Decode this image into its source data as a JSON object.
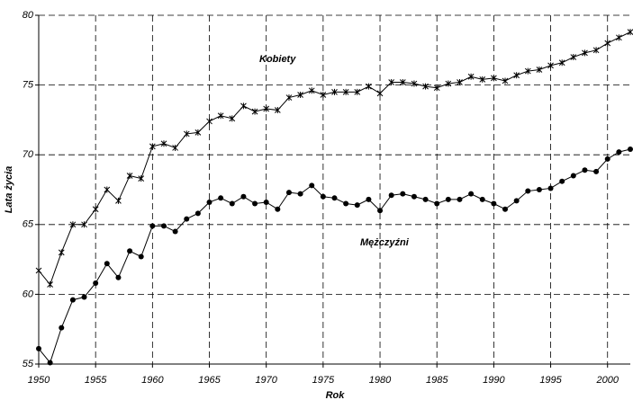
{
  "chart_data": {
    "type": "line",
    "x_label": "Rok",
    "y_label": "Lata życia",
    "annotations": [
      "Kobiety",
      "Mężczyźni"
    ],
    "x": [
      1950,
      1951,
      1952,
      1953,
      1954,
      1955,
      1956,
      1957,
      1958,
      1959,
      1960,
      1961,
      1962,
      1963,
      1964,
      1965,
      1966,
      1967,
      1968,
      1969,
      1970,
      1971,
      1972,
      1973,
      1974,
      1975,
      1976,
      1977,
      1978,
      1979,
      1980,
      1981,
      1982,
      1983,
      1984,
      1985,
      1986,
      1987,
      1988,
      1989,
      1990,
      1991,
      1992,
      1993,
      1994,
      1995,
      1996,
      1997,
      1998,
      1999,
      2000,
      2001,
      2002
    ],
    "series": [
      {
        "name": "Kobiety",
        "color": "#000000",
        "marker": "x",
        "values": [
          61.7,
          60.7,
          63.0,
          65.0,
          65.0,
          66.1,
          67.5,
          66.7,
          68.5,
          68.3,
          70.6,
          70.8,
          70.5,
          71.5,
          71.6,
          72.4,
          72.8,
          72.6,
          73.5,
          73.1,
          73.3,
          73.2,
          74.1,
          74.3,
          74.6,
          74.3,
          74.5,
          74.5,
          74.5,
          74.9,
          74.4,
          75.2,
          75.2,
          75.1,
          74.9,
          74.8,
          75.1,
          75.2,
          75.6,
          75.4,
          75.5,
          75.3,
          75.7,
          76.0,
          76.1,
          76.4,
          76.6,
          77.0,
          77.3,
          77.5,
          78.0,
          78.4,
          78.8
        ]
      },
      {
        "name": "Mężczyźni",
        "color": "#000000",
        "marker": "o",
        "values": [
          56.1,
          55.1,
          57.6,
          59.6,
          59.8,
          60.8,
          62.2,
          61.2,
          63.1,
          62.7,
          64.9,
          64.9,
          64.5,
          65.4,
          65.8,
          66.6,
          66.9,
          66.5,
          67.0,
          66.5,
          66.6,
          66.1,
          67.3,
          67.2,
          67.8,
          67.0,
          66.9,
          66.5,
          66.4,
          66.8,
          66.0,
          67.1,
          67.2,
          67.0,
          66.8,
          66.5,
          66.8,
          66.8,
          67.2,
          66.8,
          66.5,
          66.1,
          66.7,
          67.4,
          67.5,
          67.6,
          68.1,
          68.5,
          68.9,
          68.8,
          69.7,
          70.2,
          70.4
        ]
      }
    ],
    "xlim": [
      1950,
      2002
    ],
    "xticks": [
      1950,
      1955,
      1960,
      1965,
      1970,
      1975,
      1980,
      1985,
      1990,
      1995,
      2000
    ],
    "ylim": [
      55,
      80
    ],
    "yticks": [
      55,
      60,
      65,
      70,
      75,
      80
    ],
    "grid": true
  }
}
